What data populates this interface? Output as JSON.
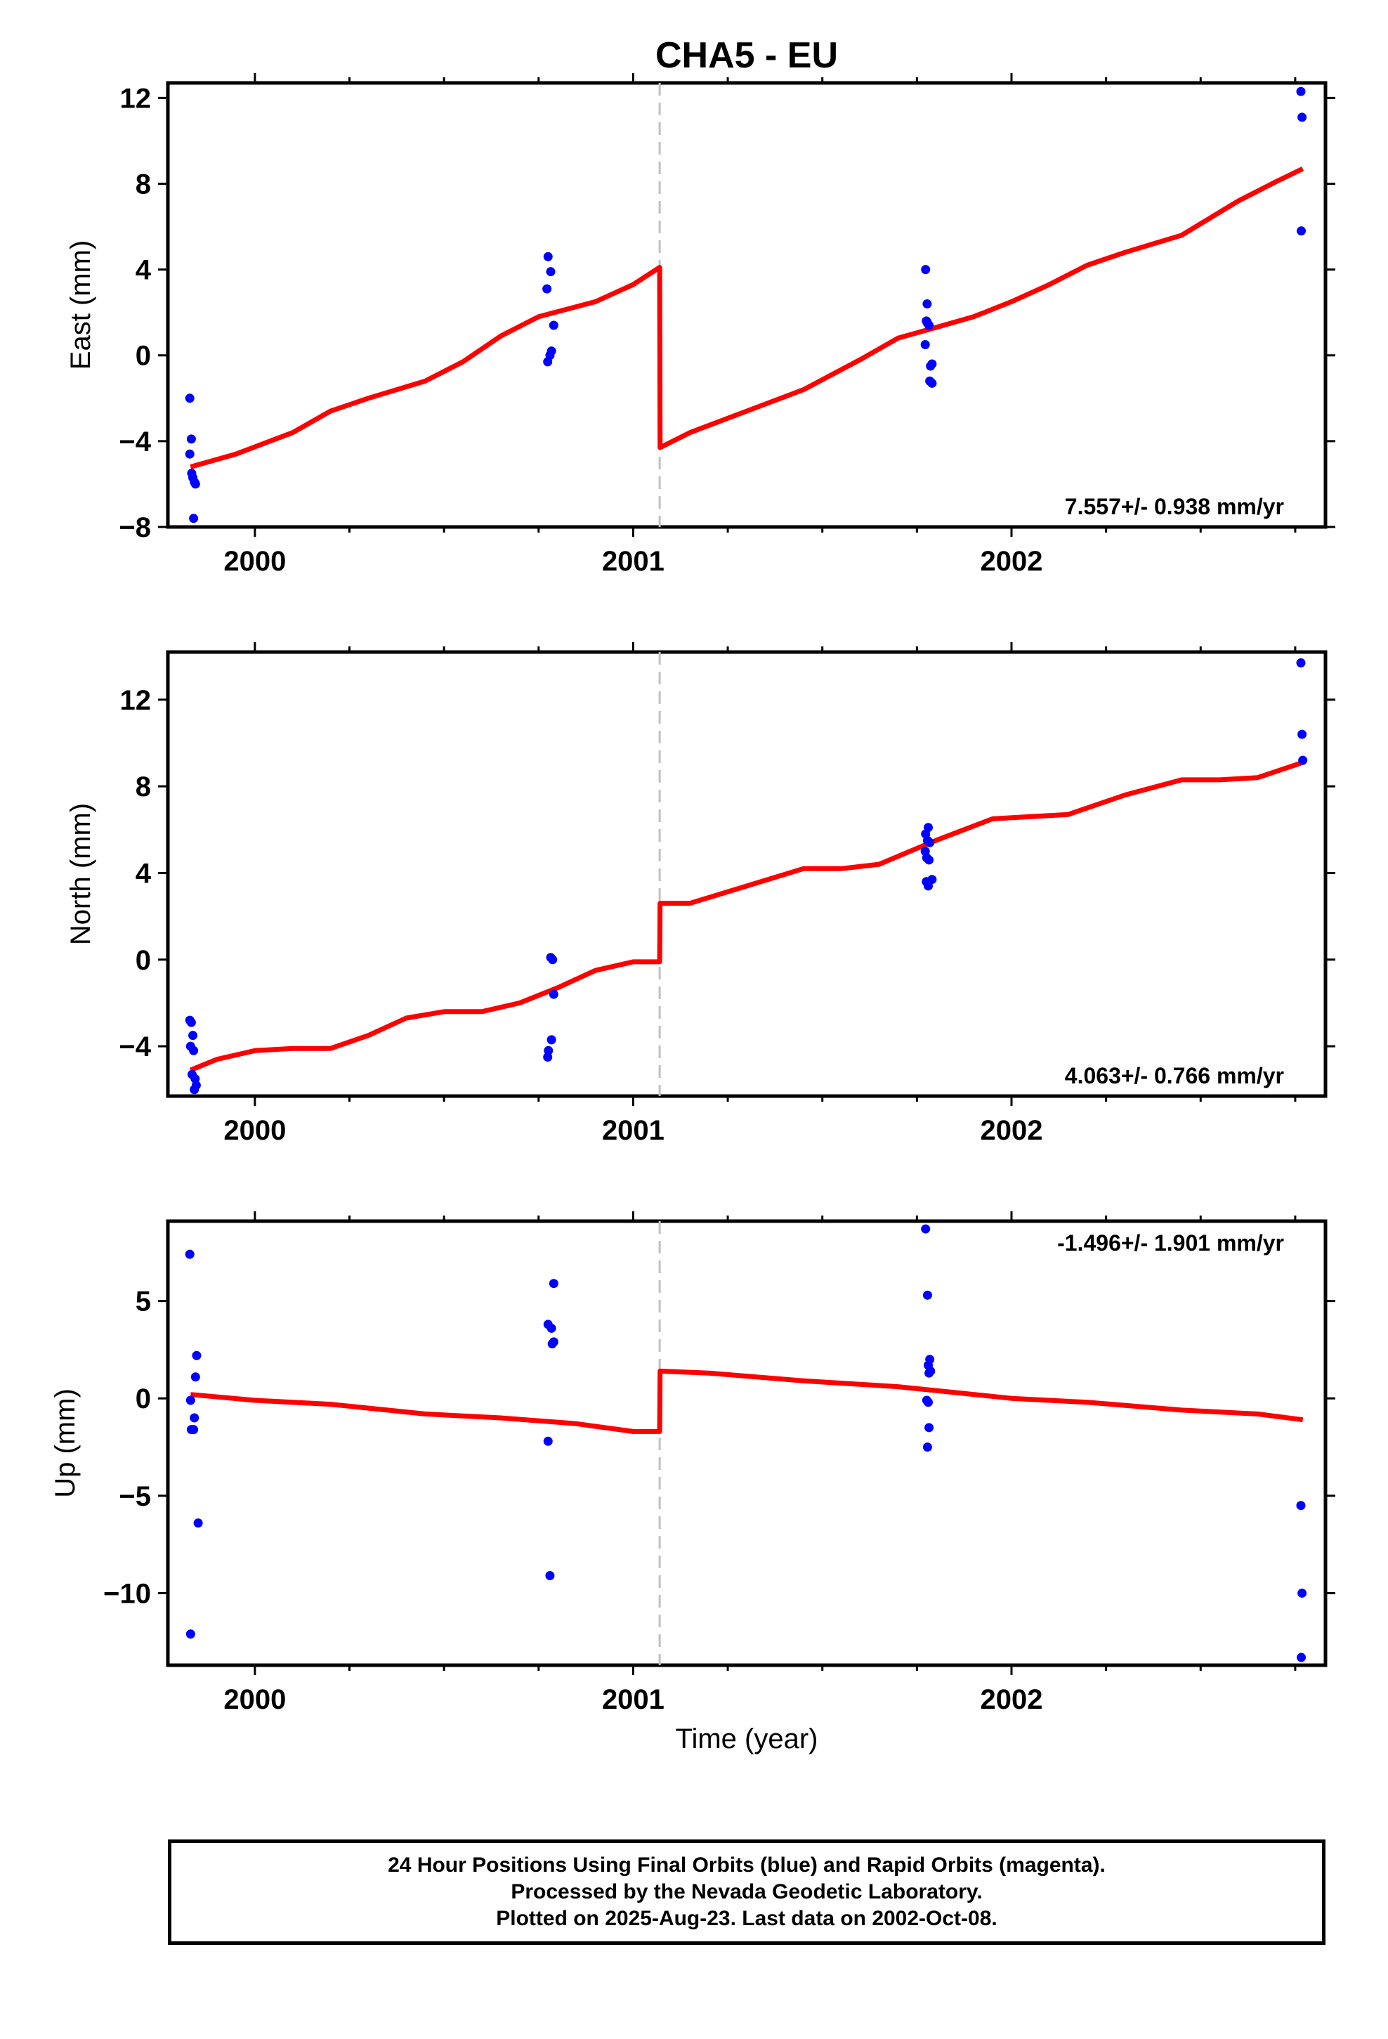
{
  "title": "CHA5 - EU",
  "xlabel": "Time (year)",
  "footer": {
    "line1": "24 Hour Positions Using Final Orbits (blue) and Rapid Orbits (magenta).",
    "line2": "Processed by the Nevada Geodetic Laboratory.",
    "line3": "Plotted on 2025-Aug-23. Last data on 2002-Oct-08."
  },
  "colors": {
    "points": "#0000ff",
    "model": "#ff0000",
    "break_line": "#c0c0c0",
    "frame": "#000000"
  },
  "chart_data": [
    {
      "type": "scatter",
      "panel": "east",
      "ylabel": "East (mm)",
      "rate_label": "7.557+/- 0.938 mm/yr",
      "rate_position": "bottom-right",
      "xlim": [
        1999.77,
        2002.83
      ],
      "ylim": [
        -8,
        12.7
      ],
      "xticks": [
        2000,
        2001,
        2002
      ],
      "yticks": [
        -8,
        -4,
        0,
        4,
        8,
        12
      ],
      "break_epoch": 2001.07,
      "points": [
        [
          1999.828,
          -2.0
        ],
        [
          1999.832,
          -3.9
        ],
        [
          1999.828,
          -4.6
        ],
        [
          1999.833,
          -5.5
        ],
        [
          1999.836,
          -5.7
        ],
        [
          1999.84,
          -5.9
        ],
        [
          1999.843,
          -6.0
        ],
        [
          1999.838,
          -7.6
        ],
        [
          2000.775,
          4.6
        ],
        [
          2000.782,
          3.9
        ],
        [
          2000.772,
          3.1
        ],
        [
          2000.79,
          1.4
        ],
        [
          2000.784,
          0.2
        ],
        [
          2000.78,
          0.0
        ],
        [
          2000.774,
          -0.3
        ],
        [
          2001.773,
          4.0
        ],
        [
          2001.777,
          2.4
        ],
        [
          2001.775,
          1.6
        ],
        [
          2001.778,
          1.5
        ],
        [
          2001.782,
          1.4
        ],
        [
          2001.772,
          0.5
        ],
        [
          2001.79,
          -0.4
        ],
        [
          2001.786,
          -0.5
        ],
        [
          2001.784,
          -1.2
        ],
        [
          2001.79,
          -1.3
        ],
        [
          2002.765,
          12.3
        ],
        [
          2002.768,
          11.1
        ],
        [
          2002.766,
          5.8
        ]
      ],
      "model": [
        [
          1999.83,
          -5.2
        ],
        [
          1999.95,
          -4.6
        ],
        [
          2000.1,
          -3.6
        ],
        [
          2000.2,
          -2.6
        ],
        [
          2000.3,
          -2.0
        ],
        [
          2000.45,
          -1.2
        ],
        [
          2000.55,
          -0.3
        ],
        [
          2000.65,
          0.9
        ],
        [
          2000.75,
          1.8
        ],
        [
          2000.9,
          2.5
        ],
        [
          2001.0,
          3.3
        ],
        [
          2001.07,
          4.1
        ],
        [
          2001.071,
          -4.3
        ],
        [
          2001.15,
          -3.6
        ],
        [
          2001.3,
          -2.6
        ],
        [
          2001.45,
          -1.6
        ],
        [
          2001.6,
          -0.2
        ],
        [
          2001.7,
          0.8
        ],
        [
          2001.8,
          1.3
        ],
        [
          2001.9,
          1.8
        ],
        [
          2002.0,
          2.5
        ],
        [
          2002.1,
          3.3
        ],
        [
          2002.2,
          4.2
        ],
        [
          2002.3,
          4.8
        ],
        [
          2002.45,
          5.6
        ],
        [
          2002.6,
          7.2
        ],
        [
          2002.7,
          8.1
        ],
        [
          2002.77,
          8.7
        ]
      ]
    },
    {
      "type": "scatter",
      "panel": "north",
      "ylabel": "North (mm)",
      "rate_label": "4.063+/- 0.766 mm/yr",
      "rate_position": "bottom-right",
      "xlim": [
        1999.77,
        2002.83
      ],
      "ylim": [
        -6.3,
        14.2
      ],
      "xticks": [
        2000,
        2001,
        2002
      ],
      "yticks": [
        -4,
        0,
        4,
        8,
        12
      ],
      "break_epoch": 2001.07,
      "points": [
        [
          1999.828,
          -2.8
        ],
        [
          1999.832,
          -2.9
        ],
        [
          1999.836,
          -3.5
        ],
        [
          1999.83,
          -4.0
        ],
        [
          1999.838,
          -4.2
        ],
        [
          1999.834,
          -5.3
        ],
        [
          1999.842,
          -5.5
        ],
        [
          1999.845,
          -5.8
        ],
        [
          1999.84,
          -6.0
        ],
        [
          2000.782,
          0.1
        ],
        [
          2000.787,
          0.0
        ],
        [
          2000.79,
          -1.6
        ],
        [
          2000.784,
          -3.7
        ],
        [
          2000.776,
          -4.2
        ],
        [
          2000.774,
          -4.5
        ],
        [
          2001.78,
          6.1
        ],
        [
          2001.773,
          5.8
        ],
        [
          2001.778,
          5.5
        ],
        [
          2001.784,
          5.4
        ],
        [
          2001.772,
          5.0
        ],
        [
          2001.776,
          4.7
        ],
        [
          2001.782,
          4.6
        ],
        [
          2001.79,
          3.7
        ],
        [
          2001.775,
          3.6
        ],
        [
          2001.78,
          3.4
        ],
        [
          2002.765,
          13.7
        ],
        [
          2002.768,
          10.4
        ],
        [
          2002.77,
          9.2
        ]
      ],
      "model": [
        [
          1999.83,
          -5.1
        ],
        [
          1999.9,
          -4.6
        ],
        [
          2000.0,
          -4.2
        ],
        [
          2000.1,
          -4.1
        ],
        [
          2000.2,
          -4.1
        ],
        [
          2000.3,
          -3.5
        ],
        [
          2000.4,
          -2.7
        ],
        [
          2000.5,
          -2.4
        ],
        [
          2000.6,
          -2.4
        ],
        [
          2000.7,
          -2.0
        ],
        [
          2000.8,
          -1.3
        ],
        [
          2000.9,
          -0.5
        ],
        [
          2001.0,
          -0.1
        ],
        [
          2001.07,
          -0.1
        ],
        [
          2001.071,
          2.6
        ],
        [
          2001.15,
          2.6
        ],
        [
          2001.3,
          3.4
        ],
        [
          2001.45,
          4.2
        ],
        [
          2001.55,
          4.2
        ],
        [
          2001.65,
          4.4
        ],
        [
          2001.8,
          5.5
        ],
        [
          2001.95,
          6.5
        ],
        [
          2002.05,
          6.6
        ],
        [
          2002.15,
          6.7
        ],
        [
          2002.3,
          7.6
        ],
        [
          2002.45,
          8.3
        ],
        [
          2002.55,
          8.3
        ],
        [
          2002.65,
          8.4
        ],
        [
          2002.77,
          9.1
        ]
      ]
    },
    {
      "type": "scatter",
      "panel": "up",
      "ylabel": "Up (mm)",
      "rate_label": "-1.496+/- 1.901 mm/yr",
      "rate_position": "top-right",
      "xlim": [
        1999.77,
        2002.83
      ],
      "ylim": [
        -13.7,
        9.1
      ],
      "xticks": [
        2000,
        2001,
        2002
      ],
      "yticks": [
        -10,
        -5,
        0,
        5
      ],
      "break_epoch": 2001.07,
      "points": [
        [
          1999.828,
          7.4
        ],
        [
          1999.846,
          2.2
        ],
        [
          1999.843,
          1.1
        ],
        [
          1999.83,
          -0.1
        ],
        [
          1999.84,
          -1.0
        ],
        [
          1999.832,
          -1.6
        ],
        [
          1999.838,
          -1.6
        ],
        [
          1999.85,
          -6.4
        ],
        [
          1999.83,
          -12.1
        ],
        [
          2000.79,
          5.9
        ],
        [
          2000.775,
          3.8
        ],
        [
          2000.784,
          3.6
        ],
        [
          2000.79,
          2.9
        ],
        [
          2000.786,
          2.8
        ],
        [
          2000.775,
          -2.2
        ],
        [
          2000.78,
          -9.1
        ],
        [
          2001.773,
          8.7
        ],
        [
          2001.778,
          5.3
        ],
        [
          2001.784,
          2.0
        ],
        [
          2001.78,
          1.7
        ],
        [
          2001.786,
          1.4
        ],
        [
          2001.782,
          1.3
        ],
        [
          2001.776,
          -0.1
        ],
        [
          2001.78,
          -0.2
        ],
        [
          2001.782,
          -1.5
        ],
        [
          2001.778,
          -2.5
        ],
        [
          2002.765,
          -5.5
        ],
        [
          2002.768,
          -10.0
        ],
        [
          2002.766,
          -13.3
        ]
      ],
      "model": [
        [
          1999.83,
          0.2
        ],
        [
          2000.0,
          -0.1
        ],
        [
          2000.2,
          -0.3
        ],
        [
          2000.45,
          -0.8
        ],
        [
          2000.65,
          -1.0
        ],
        [
          2000.85,
          -1.3
        ],
        [
          2001.0,
          -1.7
        ],
        [
          2001.07,
          -1.7
        ],
        [
          2001.071,
          1.4
        ],
        [
          2001.2,
          1.3
        ],
        [
          2001.45,
          0.9
        ],
        [
          2001.7,
          0.6
        ],
        [
          2001.85,
          0.3
        ],
        [
          2002.0,
          0.0
        ],
        [
          2002.2,
          -0.2
        ],
        [
          2002.45,
          -0.6
        ],
        [
          2002.65,
          -0.8
        ],
        [
          2002.77,
          -1.1
        ]
      ]
    }
  ]
}
